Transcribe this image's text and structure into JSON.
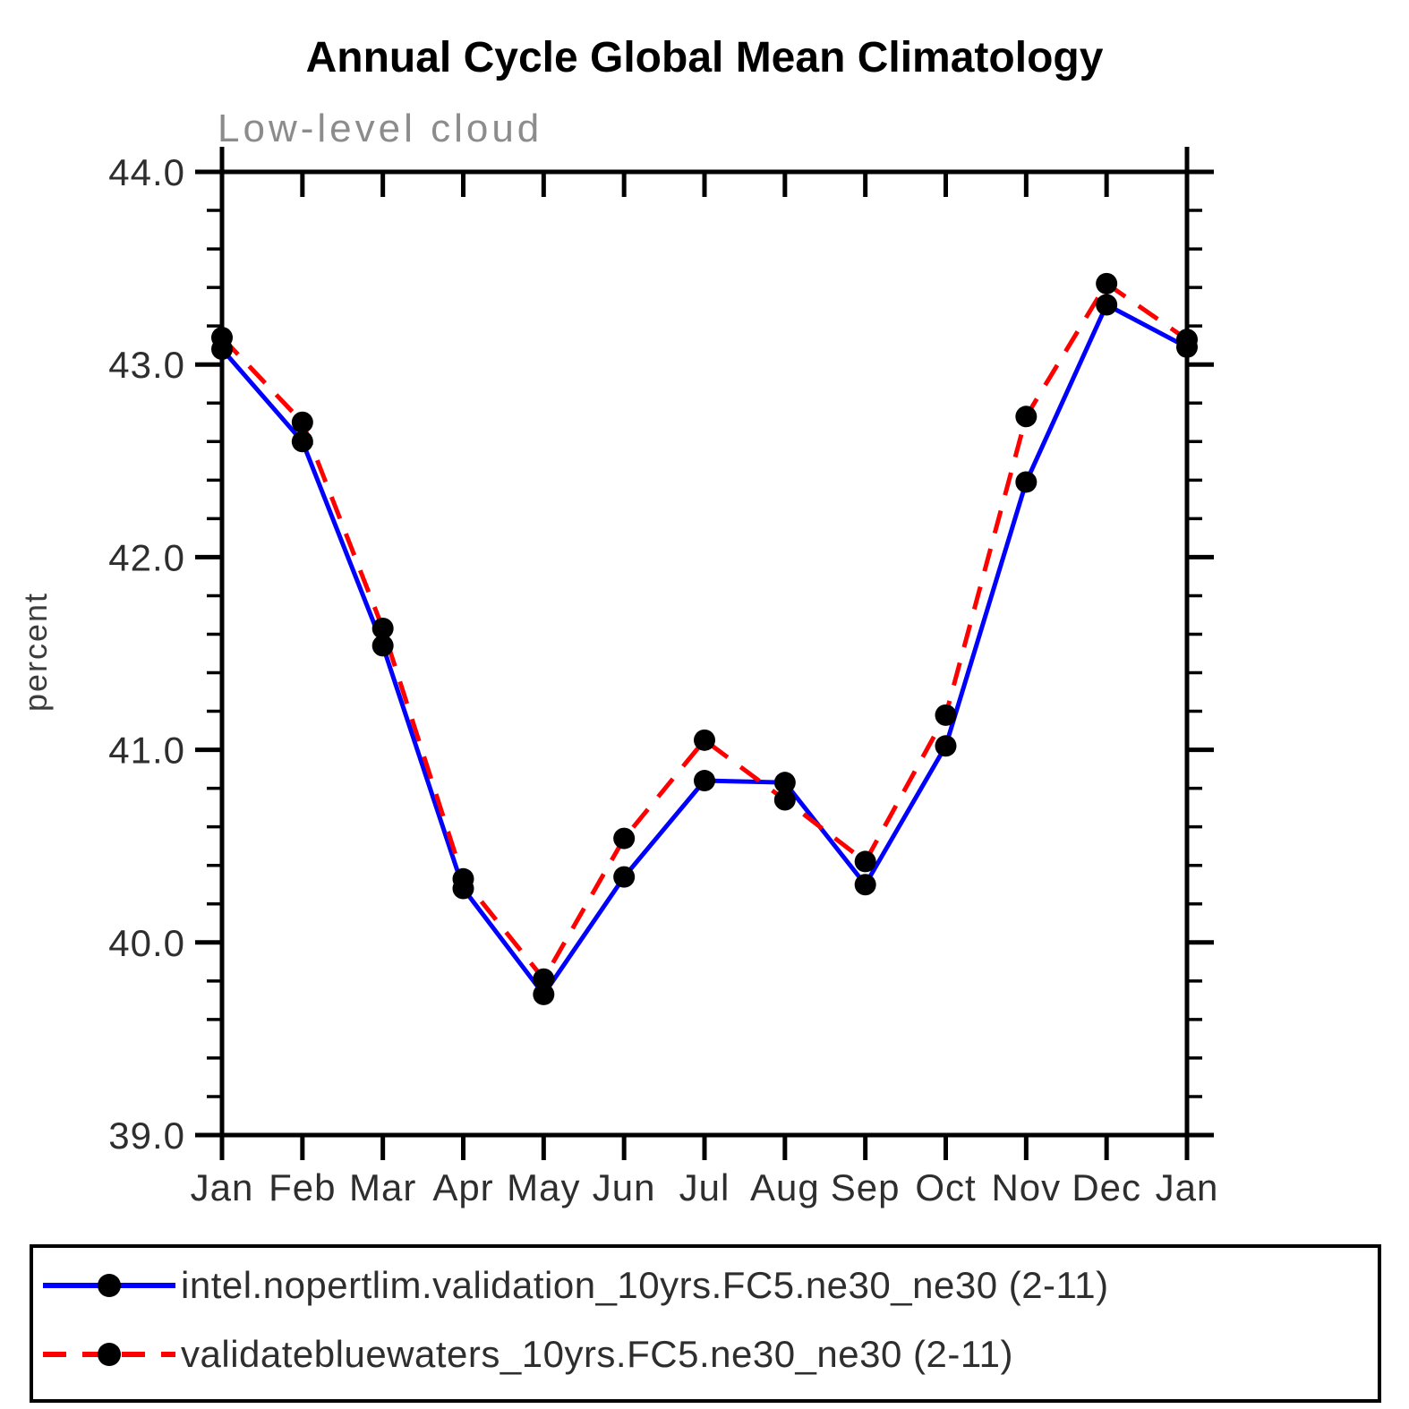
{
  "title": "Annual Cycle Global Mean Climatology",
  "chart_data": {
    "type": "line",
    "title": "Annual Cycle Global Mean Climatology",
    "subtitle": "Low-level cloud",
    "xlabel": "",
    "ylabel": "percent",
    "categories": [
      "Jan",
      "Feb",
      "Mar",
      "Apr",
      "May",
      "Jun",
      "Jul",
      "Aug",
      "Sep",
      "Oct",
      "Nov",
      "Dec",
      "Jan"
    ],
    "ylim": [
      39.0,
      44.0
    ],
    "ytick_major_step": 1.0,
    "ytick_minor_step": 0.2,
    "ytick_labels_top_to_bottom": [
      "44.0",
      "43.0",
      "42.0",
      "41.0",
      "40.0",
      "39.0"
    ],
    "grid": false,
    "legend_position": "bottom",
    "colors": {
      "axis": "#000000",
      "marker": "#000000",
      "series1": "#0000ff",
      "series2": "#ff0000"
    },
    "series": [
      {
        "name": "intel.nopertlim.validation_10yrs.FC5.ne30_ne30 (2-11)",
        "color": "#0000ff",
        "line_style": "solid",
        "marker": "circle",
        "marker_color": "#000000",
        "values": [
          43.08,
          42.6,
          41.54,
          40.28,
          39.73,
          40.34,
          40.84,
          40.83,
          40.3,
          41.02,
          42.39,
          43.31,
          43.09
        ]
      },
      {
        "name": "validatebluewaters_10yrs.FC5.ne30_ne30 (2-11)",
        "color": "#ff0000",
        "line_style": "dashed",
        "marker": "circle",
        "marker_color": "#000000",
        "values": [
          43.14,
          42.7,
          41.63,
          40.33,
          39.81,
          40.54,
          41.05,
          40.74,
          40.42,
          41.18,
          42.73,
          43.42,
          43.13
        ]
      }
    ]
  }
}
